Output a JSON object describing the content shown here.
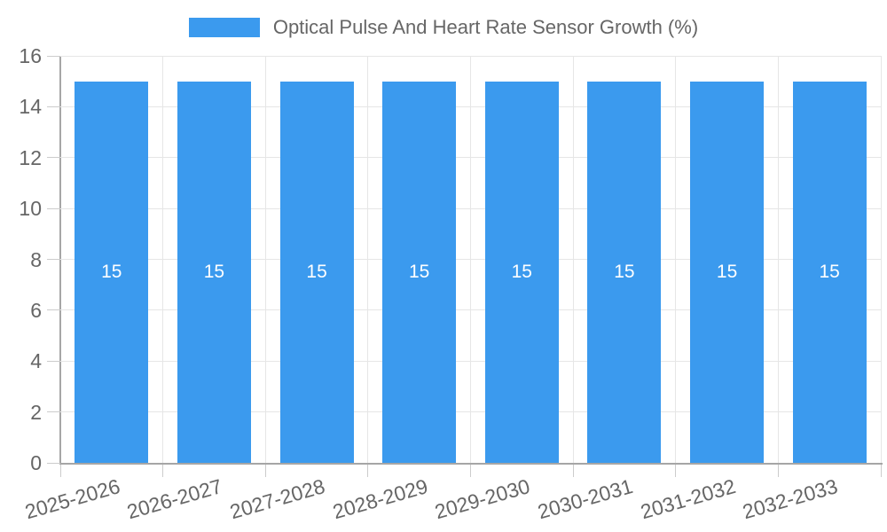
{
  "legend": {
    "label": "Optical Pulse And Heart Rate Sensor Growth (%)"
  },
  "chart_data": {
    "type": "bar",
    "title": "Optical Pulse And Heart Rate Sensor Growth (%)",
    "categories": [
      "2025-2026",
      "2026-2027",
      "2027-2028",
      "2028-2029",
      "2029-2030",
      "2030-2031",
      "2031-2032",
      "2032-2033"
    ],
    "values": [
      15,
      15,
      15,
      15,
      15,
      15,
      15,
      15
    ],
    "xlabel": "",
    "ylabel": "",
    "ylim": [
      0,
      16
    ],
    "yticks": [
      0,
      2,
      4,
      6,
      8,
      10,
      12,
      14,
      16
    ],
    "grid": true,
    "legend_position": "top",
    "x_label_rotation_deg": -16,
    "colors": {
      "bar": "#3b9aee",
      "bar_value_label": "#ffffff",
      "axis_text": "#666666",
      "gridline": "#e6e6e6",
      "axis_line": "#a6a6a6",
      "tick_mark": "#cccccc",
      "background": "#ffffff"
    }
  }
}
